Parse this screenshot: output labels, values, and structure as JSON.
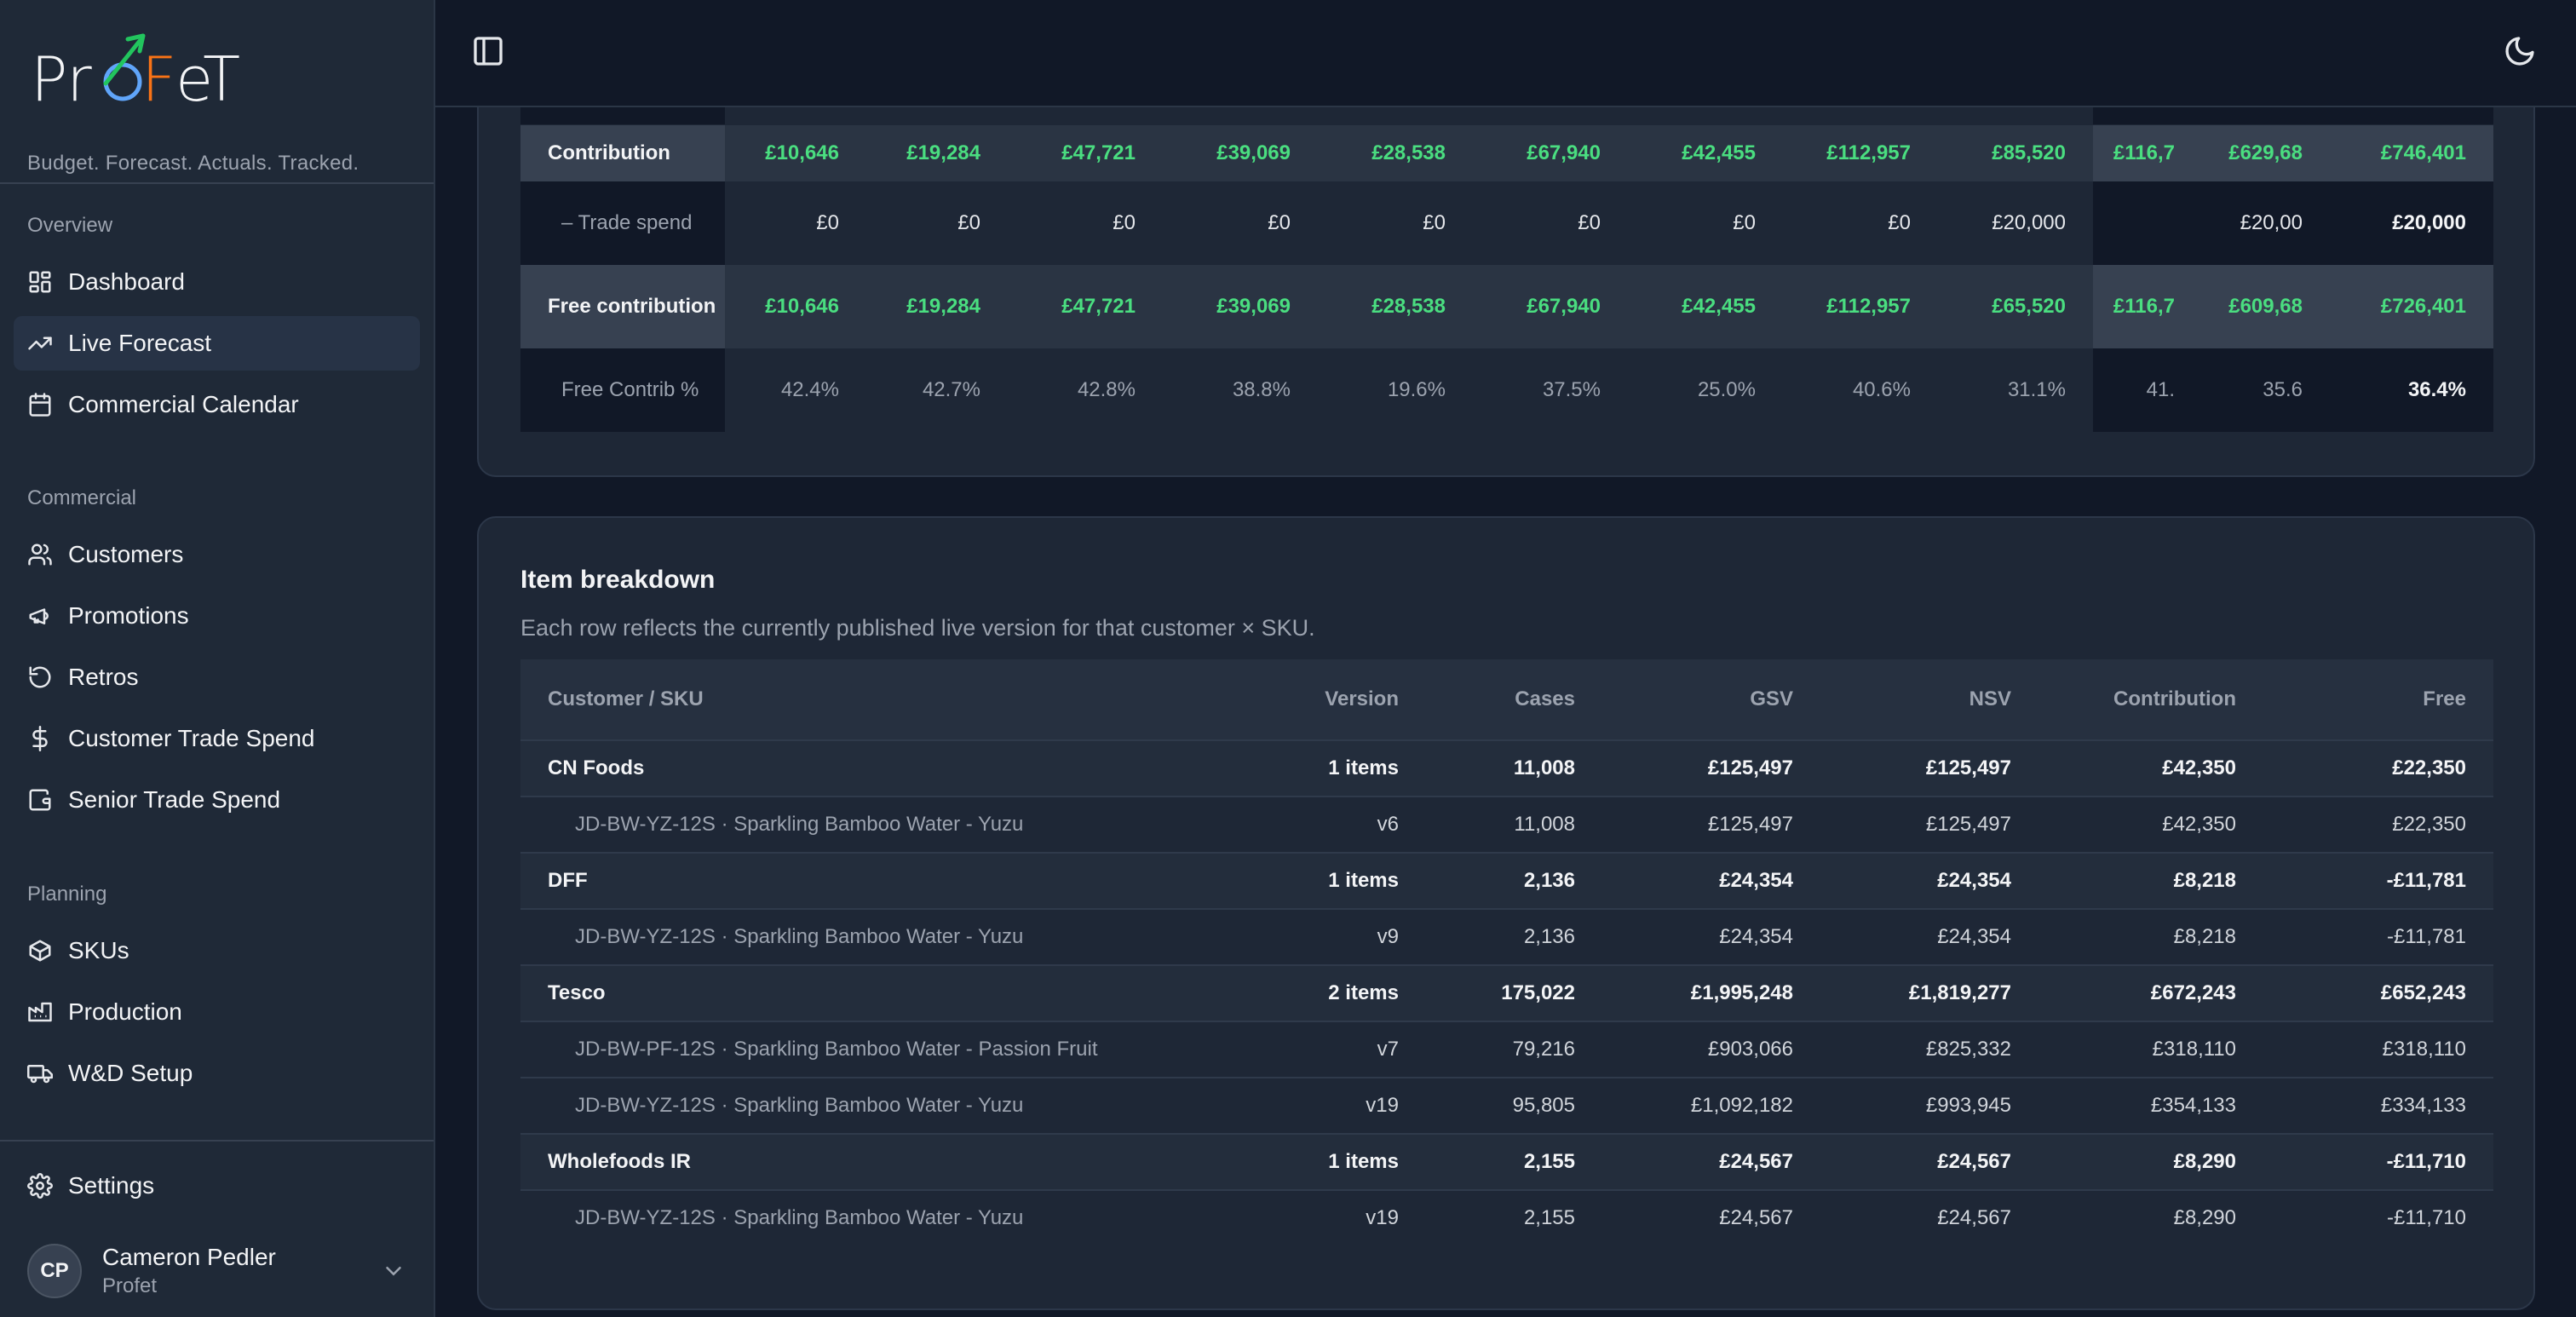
{
  "brand": {
    "logo_text": "ProFeT",
    "tagline": "Budget. Forecast. Actuals. Tracked."
  },
  "sidebar": {
    "sections": [
      {
        "heading": "Overview",
        "items": [
          {
            "label": "Dashboard",
            "icon": "dashboard-icon",
            "active": false
          },
          {
            "label": "Live Forecast",
            "icon": "trending-up-icon",
            "active": true
          },
          {
            "label": "Commercial Calendar",
            "icon": "calendar-icon",
            "active": false
          }
        ]
      },
      {
        "heading": "Commercial",
        "items": [
          {
            "label": "Customers",
            "icon": "users-icon",
            "active": false
          },
          {
            "label": "Promotions",
            "icon": "megaphone-icon",
            "active": false
          },
          {
            "label": "Retros",
            "icon": "rotate-ccw-icon",
            "active": false
          },
          {
            "label": "Customer Trade Spend",
            "icon": "dollar-icon",
            "active": false
          },
          {
            "label": "Senior Trade Spend",
            "icon": "wallet-icon",
            "active": false
          }
        ]
      },
      {
        "heading": "Planning",
        "items": [
          {
            "label": "SKUs",
            "icon": "package-icon",
            "active": false
          },
          {
            "label": "Production",
            "icon": "factory-icon",
            "active": false
          },
          {
            "label": "W&D Setup",
            "icon": "truck-icon",
            "active": false
          }
        ]
      }
    ],
    "settings_label": "Settings",
    "user": {
      "initials": "CP",
      "name": "Cameron Pedler",
      "org": "Profet"
    }
  },
  "summary": {
    "contribution": {
      "label": "Contribution",
      "values": [
        "£10,646",
        "£19,284",
        "£47,721",
        "£39,069",
        "£28,538",
        "£67,940",
        "£42,455",
        "£112,957",
        "£85,520",
        "£116,7",
        "£629,68",
        "£746,401"
      ]
    },
    "trade_spend": {
      "label": "– Trade spend",
      "values": [
        "£0",
        "£0",
        "£0",
        "£0",
        "£0",
        "£0",
        "£0",
        "£0",
        "£20,000",
        "",
        "£20,00",
        "£20,000"
      ]
    },
    "free_contribution": {
      "label": "Free contribution",
      "values": [
        "£10,646",
        "£19,284",
        "£47,721",
        "£39,069",
        "£28,538",
        "£67,940",
        "£42,455",
        "£112,957",
        "£65,520",
        "£116,7",
        "£609,68",
        "£726,401"
      ]
    },
    "free_contrib_pct": {
      "label": "Free Contrib %",
      "values": [
        "42.4%",
        "42.7%",
        "42.8%",
        "38.8%",
        "19.6%",
        "37.5%",
        "25.0%",
        "40.6%",
        "31.1%",
        "41.",
        "35.6",
        "36.4%"
      ]
    }
  },
  "item_breakdown": {
    "title": "Item breakdown",
    "subtitle": "Each row reflects the currently published live version for that customer × SKU.",
    "columns": [
      "Customer / SKU",
      "Version",
      "Cases",
      "GSV",
      "NSV",
      "Contribution",
      "Free"
    ],
    "rows": [
      {
        "type": "group",
        "cells": [
          "CN Foods",
          "1 items",
          "11,008",
          "£125,497",
          "£125,497",
          "£42,350",
          "£22,350"
        ]
      },
      {
        "type": "sku",
        "cells": [
          "JD-BW-YZ-12S · Sparkling Bamboo Water - Yuzu",
          "v6",
          "11,008",
          "£125,497",
          "£125,497",
          "£42,350",
          "£22,350"
        ]
      },
      {
        "type": "group",
        "cells": [
          "DFF",
          "1 items",
          "2,136",
          "£24,354",
          "£24,354",
          "£8,218",
          "-£11,781"
        ]
      },
      {
        "type": "sku",
        "cells": [
          "JD-BW-YZ-12S · Sparkling Bamboo Water - Yuzu",
          "v9",
          "2,136",
          "£24,354",
          "£24,354",
          "£8,218",
          "-£11,781"
        ]
      },
      {
        "type": "group",
        "cells": [
          "Tesco",
          "2 items",
          "175,022",
          "£1,995,248",
          "£1,819,277",
          "£672,243",
          "£652,243"
        ]
      },
      {
        "type": "sku",
        "cells": [
          "JD-BW-PF-12S · Sparkling Bamboo Water - Passion Fruit",
          "v7",
          "79,216",
          "£903,066",
          "£825,332",
          "£318,110",
          "£318,110"
        ]
      },
      {
        "type": "sku",
        "cells": [
          "JD-BW-YZ-12S · Sparkling Bamboo Water - Yuzu",
          "v19",
          "95,805",
          "£1,092,182",
          "£993,945",
          "£354,133",
          "£334,133"
        ]
      },
      {
        "type": "group",
        "cells": [
          "Wholefoods IR",
          "1 items",
          "2,155",
          "£24,567",
          "£24,567",
          "£8,290",
          "-£11,710"
        ]
      },
      {
        "type": "sku",
        "cells": [
          "JD-BW-YZ-12S · Sparkling Bamboo Water - Yuzu",
          "v19",
          "2,155",
          "£24,567",
          "£24,567",
          "£8,290",
          "-£11,710"
        ]
      }
    ]
  },
  "colors": {
    "accent_green": "#4ade80",
    "logo_orange": "#f97316",
    "logo_blue": "#60a5fa"
  }
}
